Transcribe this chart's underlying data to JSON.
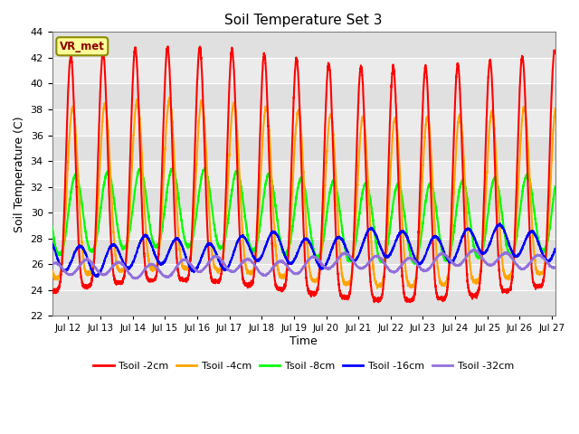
{
  "title": "Soil Temperature Set 3",
  "xlabel": "Time",
  "ylabel": "Soil Temperature (C)",
  "ylim": [
    22,
    44
  ],
  "yticks": [
    22,
    24,
    26,
    28,
    30,
    32,
    34,
    36,
    38,
    40,
    42,
    44
  ],
  "xlim_days": [
    11.5,
    27.1
  ],
  "xtick_positions": [
    12,
    13,
    14,
    15,
    16,
    17,
    18,
    19,
    20,
    21,
    22,
    23,
    24,
    25,
    26,
    27
  ],
  "xtick_labels": [
    "Jul 12",
    "Jul 13",
    "Jul 14",
    "Jul 15",
    "Jul 16",
    "Jul 17",
    "Jul 18",
    "Jul 19",
    "Jul 20",
    "Jul 21",
    "Jul 22",
    "Jul 23",
    "Jul 24",
    "Jul 25",
    "Jul 26",
    "Jul 27"
  ],
  "bg_color": "#ebebeb",
  "band_colors": [
    "#e0e0e0",
    "#ebebeb"
  ],
  "grid_color": "white",
  "legend_label": "VR_met",
  "series_colors": [
    "red",
    "orange",
    "lime",
    "blue",
    "mediumpurple"
  ],
  "series_labels": [
    "Tsoil -2cm",
    "Tsoil -4cm",
    "Tsoil -8cm",
    "Tsoil -16cm",
    "Tsoil -32cm"
  ],
  "line_width": 1.5
}
